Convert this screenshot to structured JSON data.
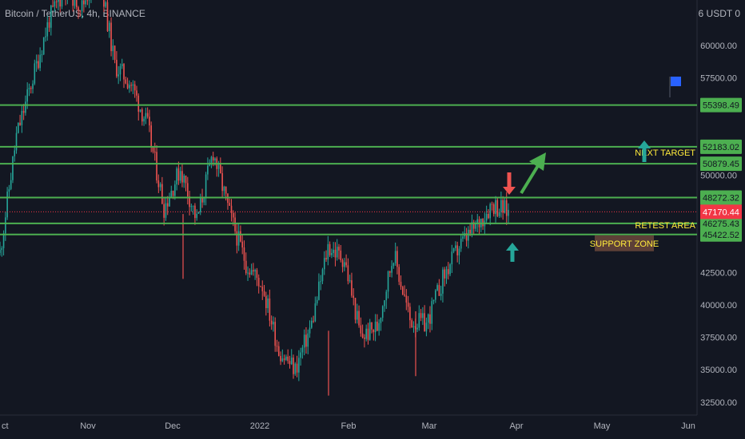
{
  "chart_data": {
    "type": "candlestick",
    "title": "Bitcoin / TetherUS, 4h, BINANCE",
    "currency_label": "6 USDT 0",
    "yaxis_ticks": [
      60000,
      57500,
      50000,
      42500,
      40000,
      37500,
      35000,
      32500
    ],
    "yaxis_tick_labels": [
      "60000.00",
      "57500.00",
      "50000.00",
      "42500.00",
      "40000.00",
      "37500.00",
      "35000.00",
      "32500.00"
    ],
    "xaxis_labels": [
      "Nov",
      "Dec",
      "2022",
      "Feb",
      "Mar",
      "Apr",
      "May",
      "Jun"
    ],
    "xaxis_partial_label": "ct",
    "ylim": [
      31500,
      63500
    ],
    "price_path": [
      {
        "date": "Oct",
        "price": 44000
      },
      {
        "date": "Oct",
        "price": 53000
      },
      {
        "date": "Oct",
        "price": 57500
      },
      {
        "date": "Oct",
        "price": 62000
      },
      {
        "date": "Oct",
        "price": 64500
      },
      {
        "date": "Nov",
        "price": 63000
      },
      {
        "date": "Nov",
        "price": 66000
      },
      {
        "date": "Nov",
        "price": 58500
      },
      {
        "date": "Nov",
        "price": 57000
      },
      {
        "date": "Dec",
        "price": 53800
      },
      {
        "date": "Dec",
        "price": 47500
      },
      {
        "date": "Dec",
        "price": 50500
      },
      {
        "date": "Dec",
        "price": 46500
      },
      {
        "date": "Dec",
        "price": 51800
      },
      {
        "date": "2022",
        "price": 47000
      },
      {
        "date": "2022",
        "price": 43200
      },
      {
        "date": "2022",
        "price": 41500
      },
      {
        "date": "2022",
        "price": 36500
      },
      {
        "date": "2022",
        "price": 35000
      },
      {
        "date": "Feb",
        "price": 38500
      },
      {
        "date": "Feb",
        "price": 44500
      },
      {
        "date": "Feb",
        "price": 43500
      },
      {
        "date": "Feb",
        "price": 37500
      },
      {
        "date": "Mar",
        "price": 38300
      },
      {
        "date": "Mar",
        "price": 44000
      },
      {
        "date": "Mar",
        "price": 38800
      },
      {
        "date": "Mar",
        "price": 38500
      },
      {
        "date": "Mar",
        "price": 42000
      },
      {
        "date": "Mar",
        "price": 44500
      },
      {
        "date": "Mar",
        "price": 46000
      },
      {
        "date": "Mar",
        "price": 47800
      },
      {
        "date": "Mar",
        "price": 47170.44
      }
    ],
    "price_spikes": [
      {
        "date": "Dec",
        "low": 42000
      },
      {
        "date": "2022",
        "low": 33000
      },
      {
        "date": "Feb",
        "low": 34500
      }
    ],
    "horizontal_lines": [
      {
        "price": 55398.49,
        "label": "55398.49"
      },
      {
        "price": 52183.02,
        "label": "52183.02"
      },
      {
        "price": 50879.45,
        "label": "50879.45"
      },
      {
        "price": 48272.32,
        "label": "48272.32"
      },
      {
        "price": 46275.43,
        "label": "46275.43"
      },
      {
        "price": 45422.52,
        "label": "45422.52"
      }
    ],
    "current_price": {
      "price": 47170.44,
      "label": "47170.44"
    },
    "annotations": [
      {
        "text": "NEXT TARGET",
        "price": 51500
      },
      {
        "text": "RETEST AREA",
        "price": 45900
      },
      {
        "text": "SUPPORT ZONE",
        "price": 44500
      }
    ],
    "colors": {
      "background": "#131722",
      "up": "#26a69a",
      "down": "#ef5350",
      "level_line": "#4caf50",
      "level_label_bg": "#4caf50",
      "current_price_bg": "#f23645",
      "annotation_text": "#ffeb3b",
      "support_box_bg": "#5d4037",
      "flag": "#2962ff"
    },
    "grid": false,
    "legend": "none"
  }
}
